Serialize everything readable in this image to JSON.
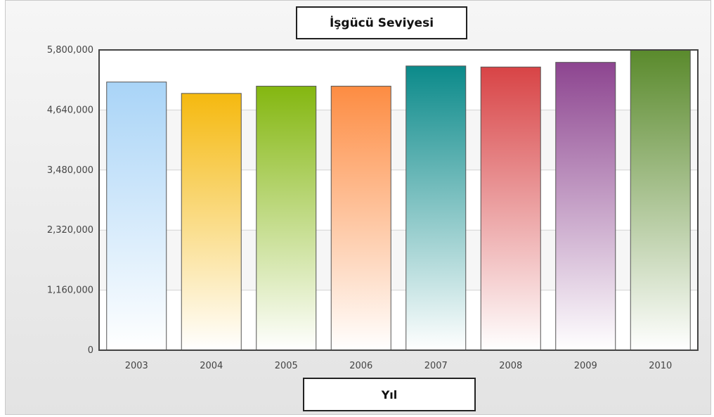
{
  "chart_data": {
    "type": "bar",
    "title": "İşgücü Seviyesi",
    "xlabel": "Yıl",
    "ylabel": "",
    "categories": [
      "2003",
      "2004",
      "2005",
      "2006",
      "2007",
      "2008",
      "2009",
      "2010"
    ],
    "values": [
      5180000,
      4960000,
      5100000,
      5100000,
      5490000,
      5470000,
      5560000,
      5800000
    ],
    "ylim": [
      0,
      5800000
    ],
    "yticks": [
      "0",
      "1,160,000",
      "2,320,000",
      "3,480,000",
      "4,640,000",
      "5,800,000"
    ],
    "grid": true,
    "legend": "none",
    "colors": [
      "#a9d4f7",
      "#f5b90f",
      "#84b710",
      "#fd8c42",
      "#0b8a8a",
      "#d84446",
      "#8d4590",
      "#5a8a2c"
    ]
  }
}
